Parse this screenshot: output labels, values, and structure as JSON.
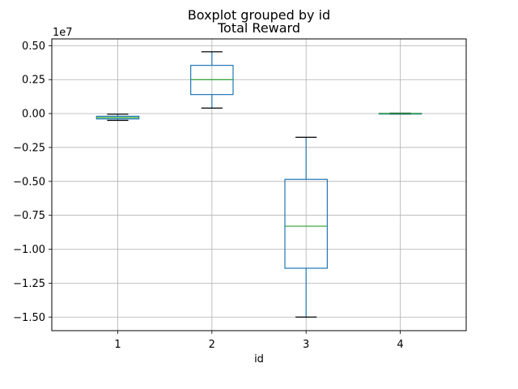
{
  "chart_data": {
    "type": "boxplot",
    "suptitle": "Boxplot grouped by id",
    "title": "Total Reward",
    "xlabel": "id",
    "ylabel": "",
    "y_offset_label": "1e7",
    "y_scale": 10000000,
    "ylim": [
      -1.6,
      0.55
    ],
    "yticks": [
      0.5,
      0.25,
      0.0,
      -0.25,
      -0.5,
      -0.75,
      -1.0,
      -1.25,
      -1.5
    ],
    "ytick_labels": [
      "0.50",
      "0.25",
      "0.00",
      "−0.25",
      "−0.50",
      "−0.75",
      "−1.00",
      "−1.25",
      "−1.50"
    ],
    "categories": [
      "1",
      "2",
      "3",
      "4"
    ],
    "grid": true,
    "boxes": [
      {
        "category": "1",
        "whisker_low": -0.05,
        "q1": -0.04,
        "median": -0.03,
        "q3": -0.02,
        "whisker_high": -0.005
      },
      {
        "category": "2",
        "whisker_low": 0.04,
        "q1": 0.14,
        "median": 0.25,
        "q3": 0.355,
        "whisker_high": 0.455
      },
      {
        "category": "3",
        "whisker_low": -1.5,
        "q1": -1.14,
        "median": -0.83,
        "q3": -0.485,
        "whisker_high": -0.175
      },
      {
        "category": "4",
        "whisker_low": -0.004,
        "q1": -0.002,
        "median": 0.0,
        "q3": 0.001,
        "whisker_high": 0.003
      }
    ],
    "colors": {
      "box": "#1f77b4",
      "median": "#2ca02c",
      "whisker_cap": "#000000",
      "grid": "#b0b0b0",
      "axis": "#000000"
    }
  }
}
